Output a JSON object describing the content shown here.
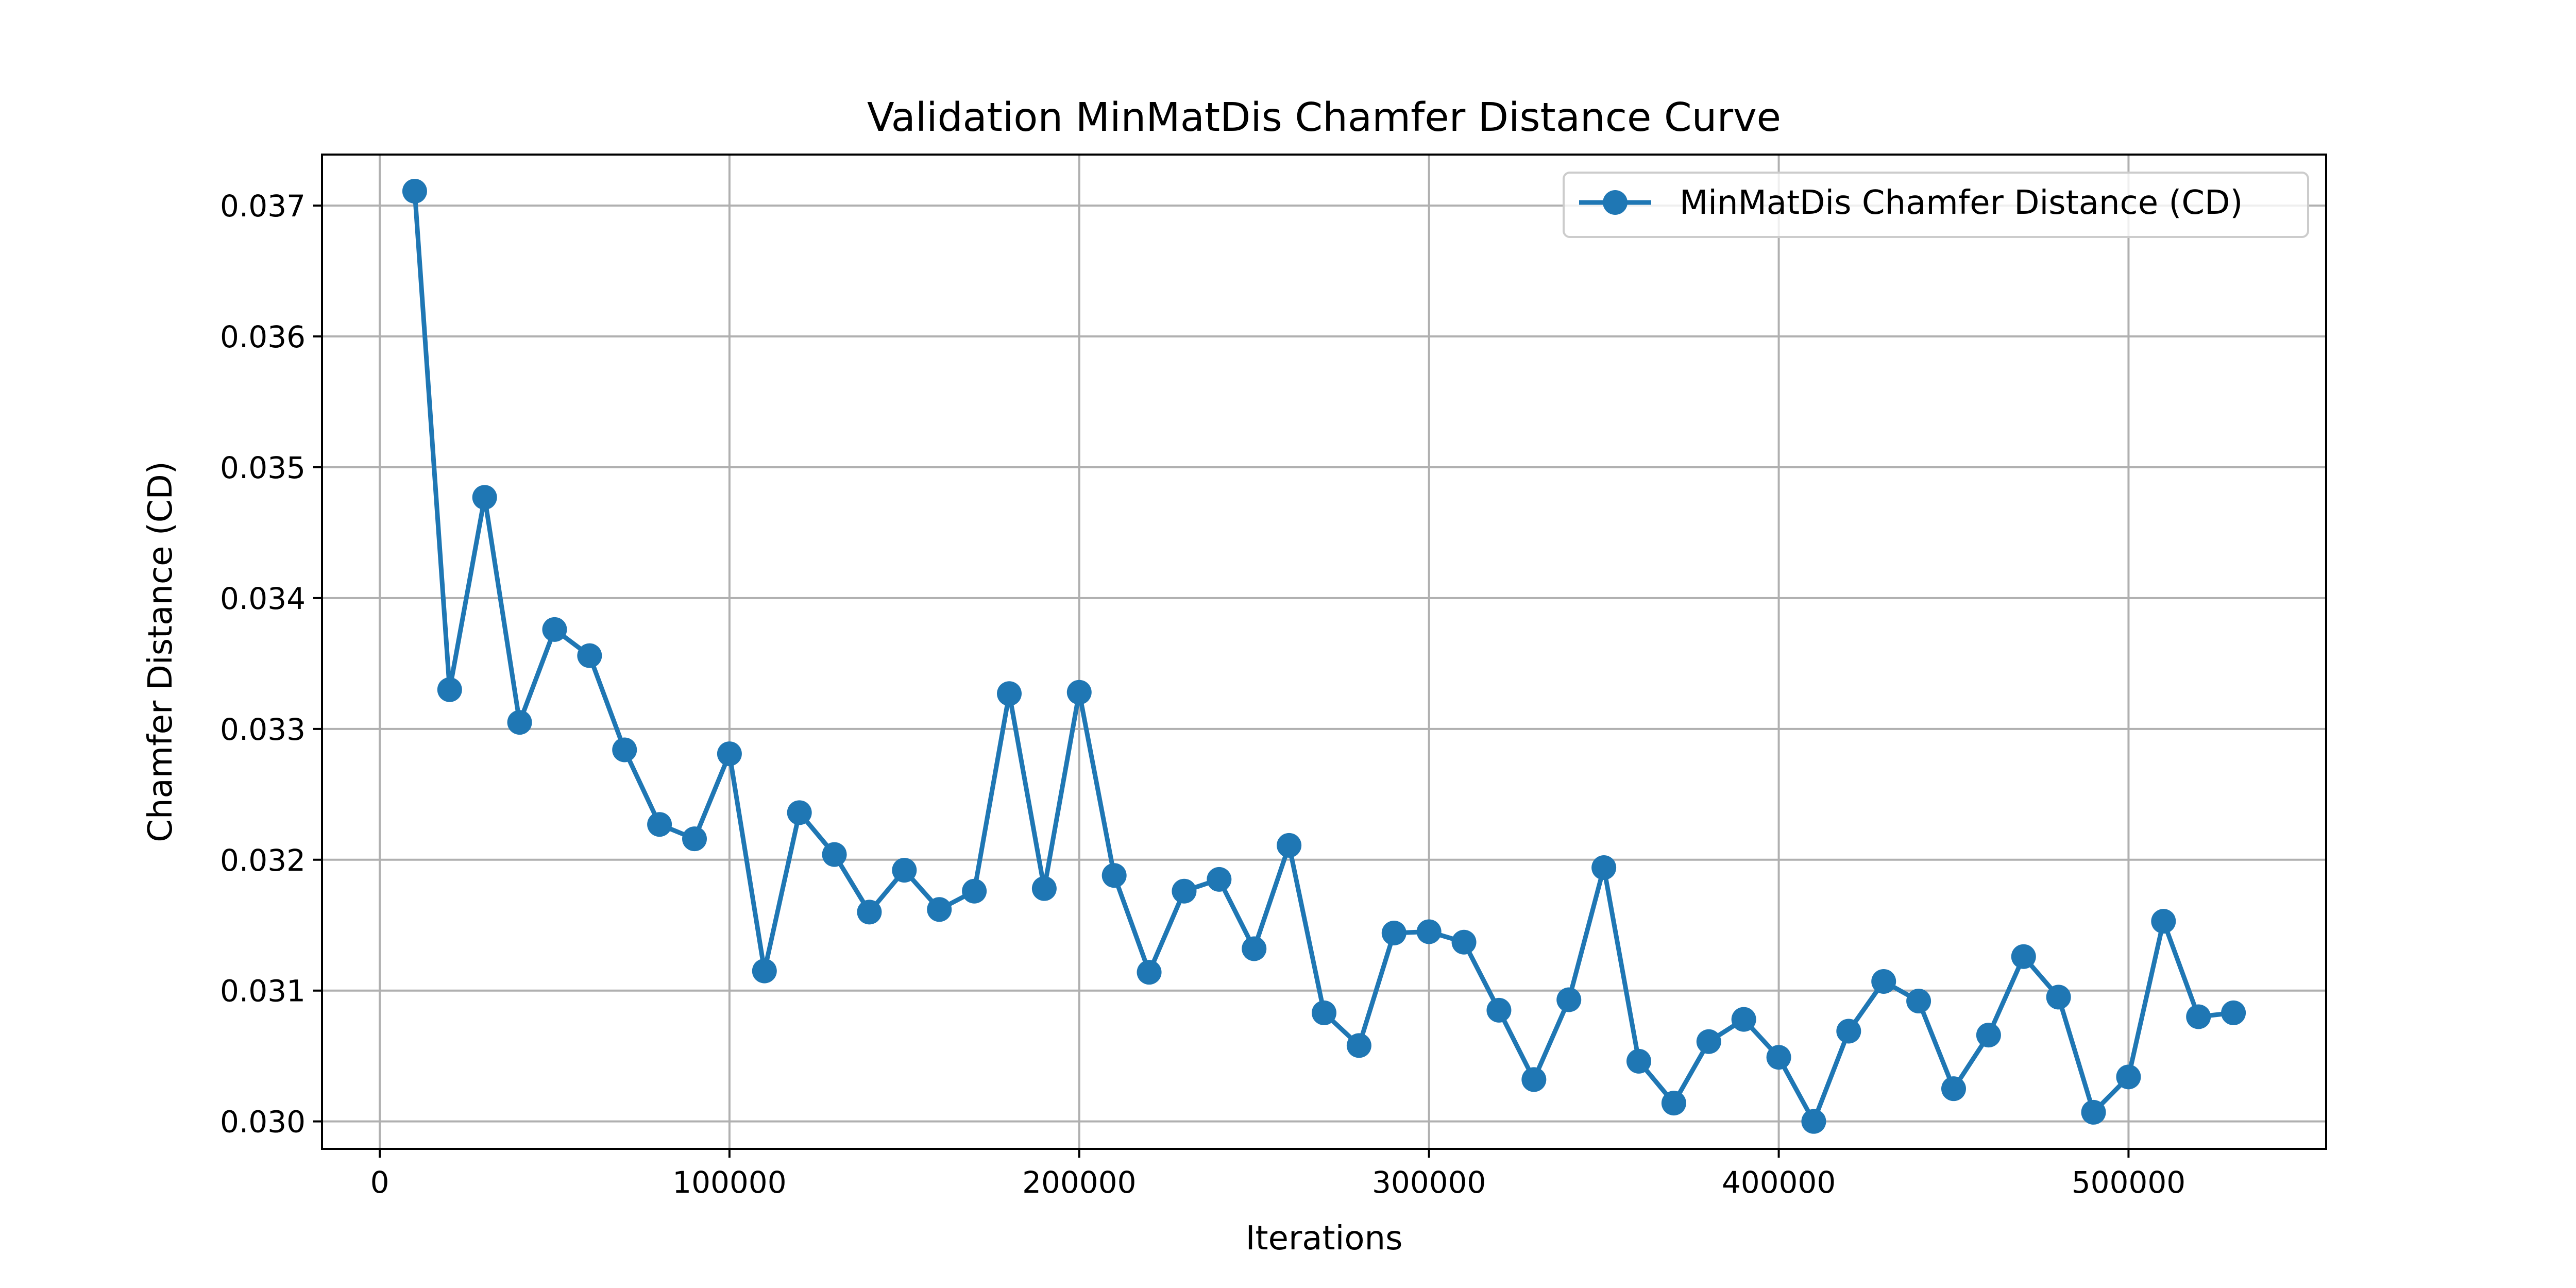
{
  "chart_data": {
    "type": "line",
    "title": "Validation MinMatDis Chamfer Distance Curve",
    "xlabel": "Iterations",
    "ylabel": "Chamfer Distance (CD)",
    "xlim": [
      -16500,
      556500
    ],
    "ylim": [
      0.02979,
      0.03739
    ],
    "xticks": [
      0,
      100000,
      200000,
      300000,
      400000,
      500000
    ],
    "yticks": [
      0.03,
      0.031,
      0.032,
      0.033,
      0.034,
      0.035,
      0.036,
      0.037
    ],
    "xtick_labels": [
      "0",
      "100000",
      "200000",
      "300000",
      "400000",
      "500000"
    ],
    "ytick_labels": [
      "0.030",
      "0.031",
      "0.032",
      "0.033",
      "0.034",
      "0.035",
      "0.036",
      "0.037"
    ],
    "grid": true,
    "legend_position": "top-right",
    "series": [
      {
        "name": "MinMatDis Chamfer Distance (CD)",
        "color": "#1f77b4",
        "marker": "circle",
        "x": [
          10000,
          20000,
          30000,
          40000,
          50000,
          60000,
          70000,
          80000,
          90000,
          100000,
          110000,
          120000,
          130000,
          140000,
          150000,
          160000,
          170000,
          180000,
          190000,
          200000,
          210000,
          220000,
          230000,
          240000,
          250000,
          260000,
          270000,
          280000,
          290000,
          300000,
          310000,
          320000,
          330000,
          340000,
          350000,
          360000,
          370000,
          380000,
          390000,
          400000,
          410000,
          420000,
          430000,
          440000,
          450000,
          460000,
          470000,
          480000,
          490000,
          500000,
          510000,
          520000,
          530000
        ],
        "y": [
          0.03711,
          0.0333,
          0.03477,
          0.03305,
          0.03376,
          0.03356,
          0.03284,
          0.03227,
          0.03216,
          0.03281,
          0.03115,
          0.03236,
          0.03204,
          0.0316,
          0.03192,
          0.03162,
          0.03176,
          0.03327,
          0.03178,
          0.03328,
          0.03188,
          0.03114,
          0.03176,
          0.03185,
          0.03132,
          0.03211,
          0.03083,
          0.03058,
          0.03144,
          0.03145,
          0.03137,
          0.03085,
          0.03032,
          0.03093,
          0.03194,
          0.03046,
          0.03014,
          0.03061,
          0.03078,
          0.03049,
          0.03,
          0.03069,
          0.03107,
          0.03092,
          0.03025,
          0.03066,
          0.03126,
          0.03095,
          0.03007,
          0.03034,
          0.03153,
          0.0308,
          0.03083
        ]
      }
    ]
  }
}
